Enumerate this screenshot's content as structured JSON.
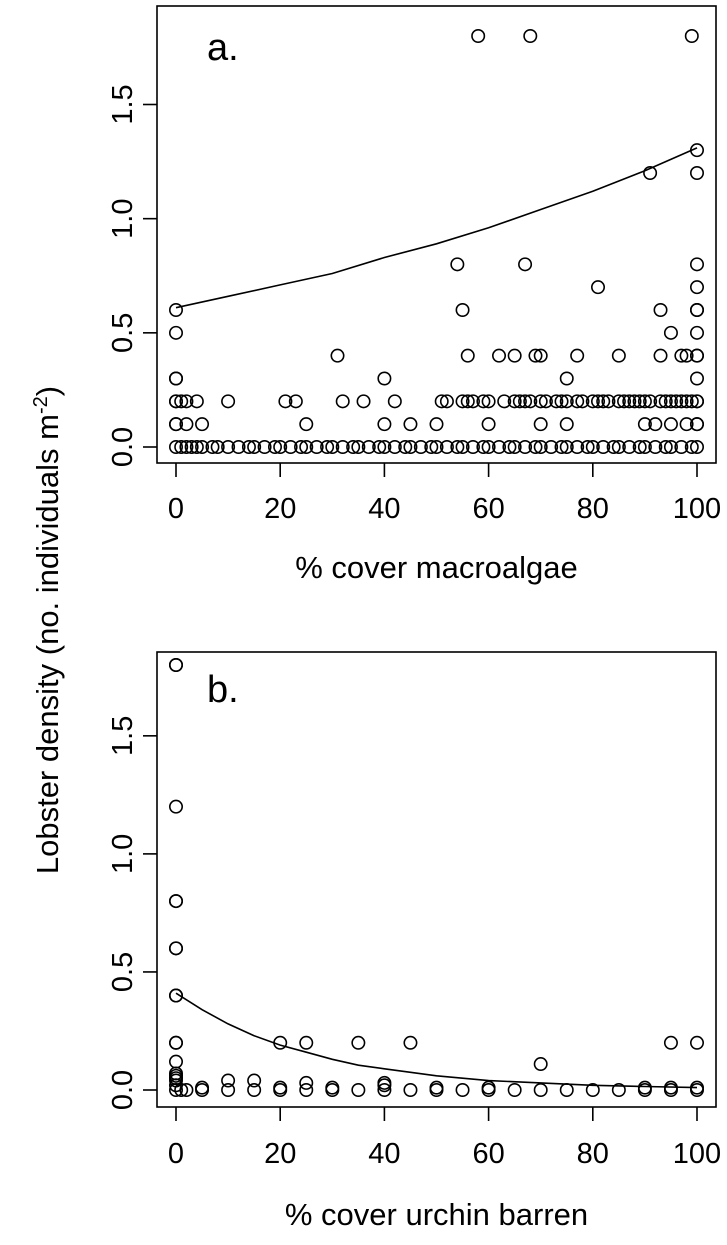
{
  "ylabel_main": "Lobster density (no. individuals m",
  "ylabel_sup": "-2",
  "ylabel_close": ")",
  "chart_data": [
    {
      "type": "scatter",
      "panel_label": "a.",
      "xlabel": "% cover macroalgae",
      "xlim": [
        0,
        100
      ],
      "ylim": [
        0,
        1.8
      ],
      "xticks": [
        "0",
        "20",
        "40",
        "60",
        "80",
        "100"
      ],
      "yticks": [
        "0.0",
        "0.5",
        "1.0",
        "1.5"
      ],
      "grid": false,
      "points": [
        [
          0,
          0.6
        ],
        [
          0,
          0.5
        ],
        [
          0,
          0.3
        ],
        [
          0,
          0.3
        ],
        [
          0,
          0.2
        ],
        [
          0,
          0.2
        ],
        [
          0,
          0.1
        ],
        [
          0,
          0.1
        ],
        [
          1,
          0.2
        ],
        [
          2,
          0.1
        ],
        [
          2,
          0.2
        ],
        [
          4,
          0.2
        ],
        [
          5,
          0.1
        ],
        [
          10,
          0.2
        ],
        [
          21,
          0.2
        ],
        [
          23,
          0.2
        ],
        [
          25,
          0.1
        ],
        [
          31,
          0.4
        ],
        [
          32,
          0.2
        ],
        [
          36,
          0.2
        ],
        [
          40,
          0.3
        ],
        [
          40,
          0.1
        ],
        [
          42,
          0.2
        ],
        [
          45,
          0.1
        ],
        [
          50,
          0.1
        ],
        [
          51,
          0.2
        ],
        [
          52,
          0.2
        ],
        [
          54,
          0.8
        ],
        [
          55,
          0.6
        ],
        [
          55,
          0.2
        ],
        [
          56,
          0.4
        ],
        [
          56,
          0.2
        ],
        [
          57,
          0.2
        ],
        [
          58,
          1.8
        ],
        [
          59,
          0.2
        ],
        [
          60,
          0.2
        ],
        [
          60,
          0.1
        ],
        [
          62,
          0.4
        ],
        [
          63,
          0.2
        ],
        [
          65,
          0.4
        ],
        [
          65,
          0.2
        ],
        [
          66,
          0.2
        ],
        [
          67,
          0.8
        ],
        [
          67,
          0.2
        ],
        [
          68,
          1.8
        ],
        [
          68,
          0.2
        ],
        [
          69,
          0.4
        ],
        [
          70,
          0.4
        ],
        [
          70,
          0.2
        ],
        [
          70,
          0.1
        ],
        [
          71,
          0.2
        ],
        [
          73,
          0.2
        ],
        [
          74,
          0.2
        ],
        [
          75,
          0.3
        ],
        [
          75,
          0.2
        ],
        [
          75,
          0.1
        ],
        [
          77,
          0.4
        ],
        [
          77,
          0.2
        ],
        [
          78,
          0.2
        ],
        [
          80,
          0.2
        ],
        [
          81,
          0.7
        ],
        [
          81,
          0.2
        ],
        [
          82,
          0.2
        ],
        [
          83,
          0.2
        ],
        [
          85,
          0.4
        ],
        [
          85,
          0.2
        ],
        [
          86,
          0.2
        ],
        [
          87,
          0.2
        ],
        [
          88,
          0.2
        ],
        [
          89,
          0.2
        ],
        [
          90,
          0.2
        ],
        [
          90,
          0.1
        ],
        [
          91,
          1.2
        ],
        [
          91,
          0.2
        ],
        [
          92,
          0.1
        ],
        [
          93,
          0.6
        ],
        [
          93,
          0.4
        ],
        [
          93,
          0.2
        ],
        [
          94,
          0.2
        ],
        [
          95,
          0.5
        ],
        [
          95,
          0.2
        ],
        [
          95,
          0.1
        ],
        [
          96,
          0.2
        ],
        [
          97,
          0.4
        ],
        [
          97,
          0.2
        ],
        [
          98,
          0.4
        ],
        [
          98,
          0.2
        ],
        [
          98,
          0.1
        ],
        [
          99,
          1.8
        ],
        [
          99,
          0.2
        ],
        [
          100,
          1.3
        ],
        [
          100,
          1.2
        ],
        [
          100,
          0.8
        ],
        [
          100,
          0.7
        ],
        [
          100,
          0.6
        ],
        [
          100,
          0.6
        ],
        [
          100,
          0.5
        ],
        [
          100,
          0.4
        ],
        [
          100,
          0.4
        ],
        [
          100,
          0.3
        ],
        [
          100,
          0.2
        ],
        [
          100,
          0.2
        ],
        [
          100,
          0.1
        ],
        [
          100,
          0.1
        ],
        [
          0,
          0
        ],
        [
          1,
          0
        ],
        [
          2,
          0
        ],
        [
          3,
          0
        ],
        [
          4,
          0
        ],
        [
          5,
          0
        ],
        [
          7,
          0
        ],
        [
          8,
          0
        ],
        [
          10,
          0
        ],
        [
          12,
          0
        ],
        [
          14,
          0
        ],
        [
          15,
          0
        ],
        [
          17,
          0
        ],
        [
          19,
          0
        ],
        [
          20,
          0
        ],
        [
          22,
          0
        ],
        [
          24,
          0
        ],
        [
          25,
          0
        ],
        [
          27,
          0
        ],
        [
          29,
          0
        ],
        [
          30,
          0
        ],
        [
          32,
          0
        ],
        [
          34,
          0
        ],
        [
          35,
          0
        ],
        [
          37,
          0
        ],
        [
          39,
          0
        ],
        [
          40,
          0
        ],
        [
          42,
          0
        ],
        [
          44,
          0
        ],
        [
          45,
          0
        ],
        [
          47,
          0
        ],
        [
          49,
          0
        ],
        [
          50,
          0
        ],
        [
          52,
          0
        ],
        [
          54,
          0
        ],
        [
          55,
          0
        ],
        [
          57,
          0
        ],
        [
          59,
          0
        ],
        [
          60,
          0
        ],
        [
          62,
          0
        ],
        [
          64,
          0
        ],
        [
          65,
          0
        ],
        [
          67,
          0
        ],
        [
          69,
          0
        ],
        [
          70,
          0
        ],
        [
          72,
          0
        ],
        [
          74,
          0
        ],
        [
          75,
          0
        ],
        [
          77,
          0
        ],
        [
          79,
          0
        ],
        [
          80,
          0
        ],
        [
          82,
          0
        ],
        [
          84,
          0
        ],
        [
          85,
          0
        ],
        [
          87,
          0
        ],
        [
          89,
          0
        ],
        [
          90,
          0
        ],
        [
          92,
          0
        ],
        [
          94,
          0
        ],
        [
          95,
          0
        ],
        [
          97,
          0
        ],
        [
          99,
          0
        ],
        [
          100,
          0
        ]
      ],
      "trend": [
        [
          0,
          0.61
        ],
        [
          10,
          0.66
        ],
        [
          20,
          0.71
        ],
        [
          30,
          0.76
        ],
        [
          40,
          0.83
        ],
        [
          50,
          0.89
        ],
        [
          60,
          0.96
        ],
        [
          70,
          1.04
        ],
        [
          80,
          1.12
        ],
        [
          90,
          1.21
        ],
        [
          100,
          1.31
        ]
      ]
    },
    {
      "type": "scatter",
      "panel_label": "b.",
      "xlabel": "% cover urchin barren",
      "xlim": [
        0,
        100
      ],
      "ylim": [
        0,
        1.8
      ],
      "xticks": [
        "0",
        "20",
        "40",
        "60",
        "80",
        "100"
      ],
      "yticks": [
        "0.0",
        "0.5",
        "1.0",
        "1.5"
      ],
      "grid": false,
      "points": [
        [
          0,
          1.8
        ],
        [
          0,
          1.8
        ],
        [
          0,
          1.2
        ],
        [
          0,
          0.8
        ],
        [
          0,
          0.8
        ],
        [
          0,
          0.6
        ],
        [
          0,
          0.6
        ],
        [
          0,
          0.4
        ],
        [
          0,
          0.4
        ],
        [
          0,
          0.2
        ],
        [
          0,
          0.2
        ],
        [
          0,
          0.12
        ],
        [
          0,
          0.07
        ],
        [
          0,
          0.06
        ],
        [
          0,
          0.05
        ],
        [
          0,
          0.04
        ],
        [
          0,
          0.02
        ],
        [
          0,
          0
        ],
        [
          1,
          0
        ],
        [
          2,
          0
        ],
        [
          5,
          0
        ],
        [
          5,
          0.01
        ],
        [
          10,
          0
        ],
        [
          10,
          0.04
        ],
        [
          15,
          0
        ],
        [
          15,
          0.04
        ],
        [
          20,
          0
        ],
        [
          20,
          0.2
        ],
        [
          20,
          0.01
        ],
        [
          25,
          0
        ],
        [
          25,
          0.2
        ],
        [
          25,
          0.03
        ],
        [
          30,
          0
        ],
        [
          30,
          0.01
        ],
        [
          35,
          0
        ],
        [
          35,
          0.2
        ],
        [
          40,
          0
        ],
        [
          40,
          0.03
        ],
        [
          40,
          0.02
        ],
        [
          45,
          0
        ],
        [
          45,
          0.2
        ],
        [
          50,
          0
        ],
        [
          50,
          0.01
        ],
        [
          55,
          0
        ],
        [
          60,
          0
        ],
        [
          60,
          0.01
        ],
        [
          65,
          0
        ],
        [
          70,
          0
        ],
        [
          70,
          0.11
        ],
        [
          75,
          0
        ],
        [
          80,
          0
        ],
        [
          85,
          0
        ],
        [
          90,
          0
        ],
        [
          90,
          0.01
        ],
        [
          95,
          0
        ],
        [
          95,
          0.2
        ],
        [
          95,
          0.01
        ],
        [
          100,
          0
        ],
        [
          100,
          0.2
        ],
        [
          100,
          0.01
        ]
      ],
      "trend": [
        [
          0,
          0.41
        ],
        [
          5,
          0.34
        ],
        [
          10,
          0.28
        ],
        [
          15,
          0.23
        ],
        [
          20,
          0.19
        ],
        [
          25,
          0.16
        ],
        [
          30,
          0.13
        ],
        [
          35,
          0.105
        ],
        [
          40,
          0.09
        ],
        [
          45,
          0.075
        ],
        [
          50,
          0.06
        ],
        [
          60,
          0.04
        ],
        [
          70,
          0.03
        ],
        [
          80,
          0.02
        ],
        [
          90,
          0.015
        ],
        [
          100,
          0.01
        ]
      ]
    }
  ]
}
